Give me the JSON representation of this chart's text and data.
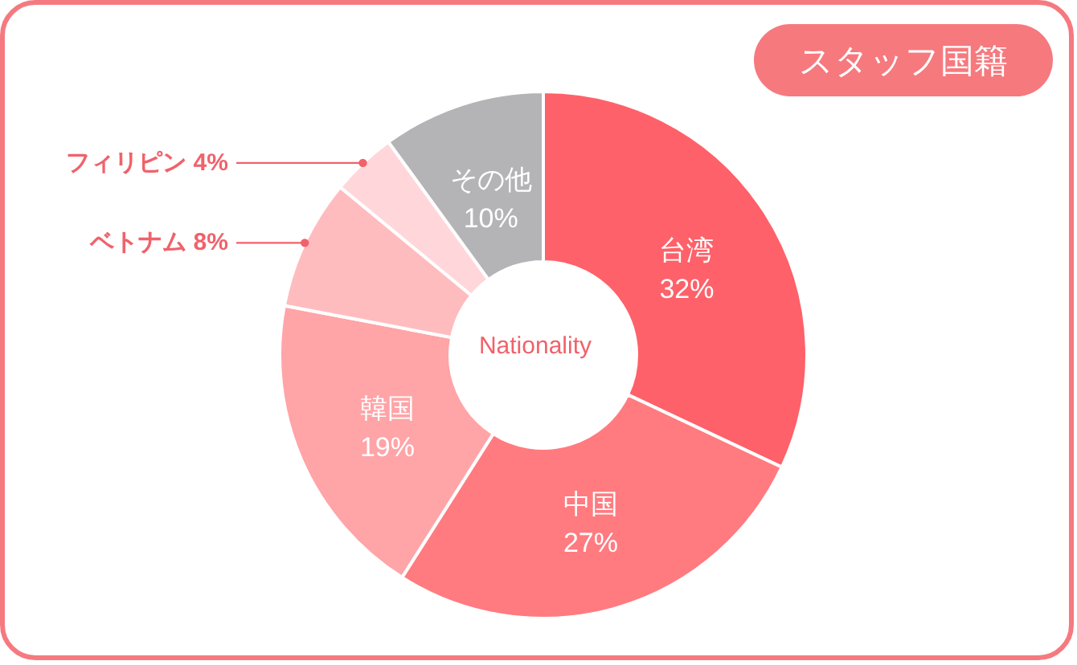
{
  "chart_data": {
    "type": "donut",
    "title": "スタッフ国籍",
    "annotations": [
      "Nationality"
    ],
    "categories": [
      "台湾",
      "中国",
      "韓国",
      "ベトナム",
      "フィリピン",
      "その他"
    ],
    "values": [
      32,
      27,
      19,
      8,
      4,
      10
    ],
    "value_labels": [
      "32%",
      "27%",
      "19%",
      "8%",
      "4%",
      "10%"
    ],
    "colors": [
      "#fe6169",
      "#ff7b80",
      "#ffa4a7",
      "#ffbcbf",
      "#ffd7da",
      "#b4b4b6"
    ]
  }
}
